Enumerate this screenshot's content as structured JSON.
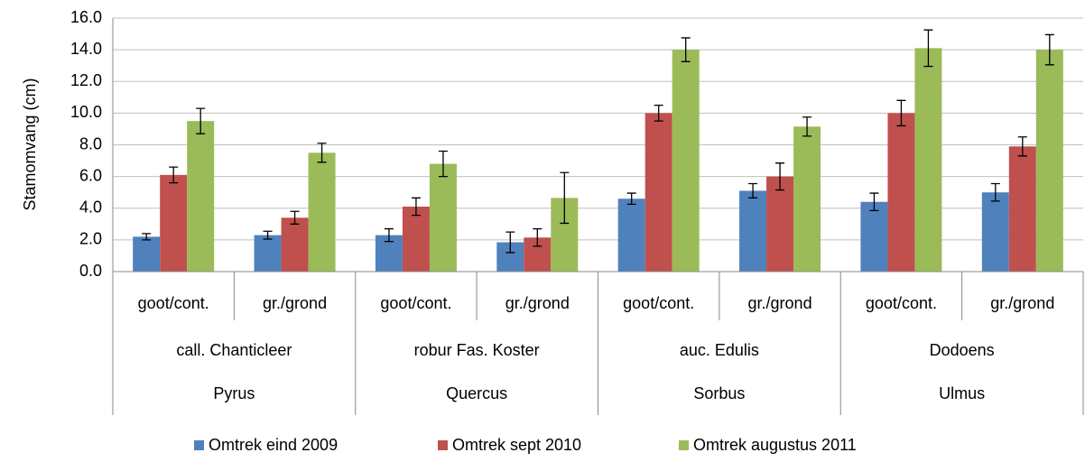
{
  "chart_data": {
    "type": "bar",
    "y_label": "Stamomvang (cm)",
    "categories": [
      "goot/cont.",
      "gr./grond",
      "goot/cont.",
      "gr./grond",
      "goot/cont.",
      "gr./grond",
      "goot/cont.",
      "gr./grond"
    ],
    "subgroups": [
      "call. Chanticleer",
      "robur Fas. Koster",
      "auc. Edulis",
      "Dodoens"
    ],
    "groups": [
      "Pyrus",
      "Quercus",
      "Sorbus",
      "Ulmus"
    ],
    "series": [
      {
        "name": "Omtrek eind 2009",
        "color": "#4f81bd",
        "values": [
          2.2,
          2.3,
          2.3,
          1.85,
          4.6,
          5.1,
          4.4,
          5.0
        ],
        "errors": [
          0.2,
          0.25,
          0.4,
          0.65,
          0.35,
          0.45,
          0.55,
          0.55
        ]
      },
      {
        "name": "Omtrek sept 2010",
        "color": "#c0504d",
        "values": [
          6.1,
          3.4,
          4.1,
          2.15,
          10.0,
          6.0,
          10.0,
          7.9
        ],
        "errors": [
          0.5,
          0.4,
          0.55,
          0.55,
          0.5,
          0.85,
          0.8,
          0.6
        ]
      },
      {
        "name": "Omtrek augustus 2011",
        "color": "#9bbb59",
        "values": [
          9.5,
          7.5,
          6.8,
          4.65,
          14.0,
          9.15,
          14.1,
          14.0
        ],
        "errors": [
          0.8,
          0.6,
          0.8,
          1.6,
          0.75,
          0.6,
          1.15,
          0.95
        ]
      }
    ],
    "ylim": [
      0,
      16
    ],
    "yticks": [
      {
        "value": 0,
        "label": "0.0"
      },
      {
        "value": 2,
        "label": "2.0"
      },
      {
        "value": 4,
        "label": "4.0"
      },
      {
        "value": 6,
        "label": "6.0"
      },
      {
        "value": 8,
        "label": "8.0"
      },
      {
        "value": 10,
        "label": "10.0"
      },
      {
        "value": 12,
        "label": "12.0"
      },
      {
        "value": 14,
        "label": "14.0"
      },
      {
        "value": 16,
        "label": "16.0"
      }
    ],
    "grid": true,
    "legend": "bottom"
  }
}
